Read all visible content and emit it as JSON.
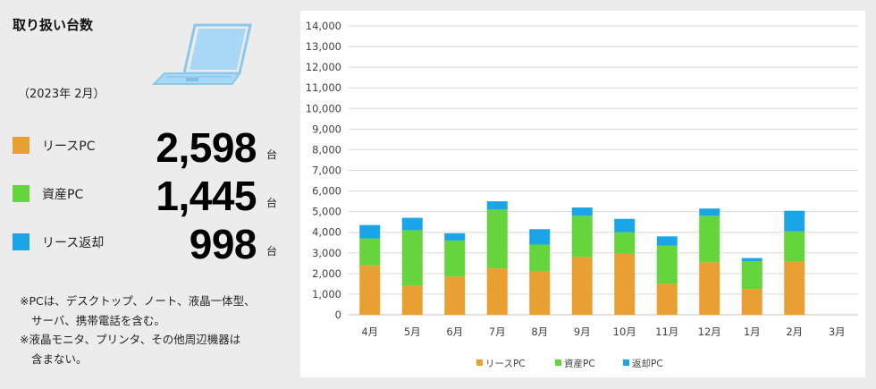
{
  "summary": {
    "title": "取り扱い台数",
    "period": "（2023年 2月）",
    "items": [
      {
        "label": "リースPC",
        "value": "2,598",
        "unit": "台",
        "color": "#E8A032"
      },
      {
        "label": "資産PC",
        "value": "1,445",
        "unit": "台",
        "color": "#66D43C"
      },
      {
        "label": "リース返却",
        "value": "998",
        "unit": "台",
        "color": "#1AA5E6"
      }
    ],
    "notes": [
      "※PCは、デスクトップ、ノート、液晶一体型、",
      "サーバ、携帯電話を含む。",
      "※液晶モニタ、プリンタ、その他周辺機器は",
      "含まない。"
    ],
    "laptop_icon": "laptop-icon"
  },
  "chart_data": {
    "type": "bar",
    "stacked": true,
    "categories": [
      "4月",
      "5月",
      "6月",
      "7月",
      "8月",
      "9月",
      "10月",
      "11月",
      "12月",
      "1月",
      "2月",
      "3月"
    ],
    "series": [
      {
        "name": "リースPC",
        "color": "#E8A032",
        "values": [
          2400,
          1400,
          1850,
          2250,
          2100,
          2800,
          2950,
          1500,
          2550,
          1250,
          2598,
          null
        ]
      },
      {
        "name": "資産PC",
        "color": "#66D43C",
        "values": [
          1300,
          2700,
          1750,
          2850,
          1300,
          2000,
          1050,
          1850,
          2250,
          1350,
          1445,
          null
        ]
      },
      {
        "name": "返却PC",
        "color": "#1AA5E6",
        "values": [
          650,
          600,
          350,
          400,
          750,
          400,
          650,
          450,
          350,
          150,
          998,
          null
        ]
      }
    ],
    "ylim": [
      0,
      14000
    ],
    "yticks": [
      "0",
      "1,000",
      "2,000",
      "3,000",
      "4,000",
      "5,000",
      "6,000",
      "7,000",
      "8,000",
      "9,000",
      "10,000",
      "11,000",
      "12,000",
      "13,000",
      "14,000"
    ],
    "grid": true,
    "legend": "bottom"
  }
}
